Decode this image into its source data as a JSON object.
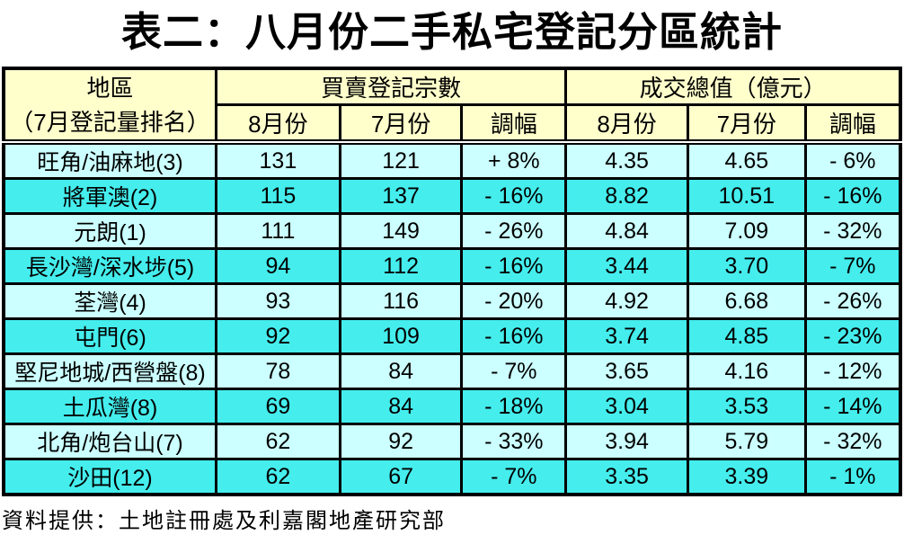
{
  "title": "表二：八月份二手私宅登記分區統計",
  "table": {
    "district_header_line1": "地區",
    "district_header_line2": "（7月登記量排名）",
    "group_headers": {
      "registrations": "買賣登記宗數",
      "total_value": "成交總值（億元）"
    },
    "sub_headers": [
      "8月份",
      "7月份",
      "調幅"
    ],
    "rows": [
      [
        "旺角/油麻地(3)",
        "131",
        "121",
        "+ 8%",
        "4.35",
        "4.65",
        "- 6%"
      ],
      [
        "將軍澳(2)",
        "115",
        "137",
        "- 16%",
        "8.82",
        "10.51",
        "- 16%"
      ],
      [
        "元朗(1)",
        "111",
        "149",
        "- 26%",
        "4.84",
        "7.09",
        "- 32%"
      ],
      [
        "長沙灣/深水埗(5)",
        "94",
        "112",
        "- 16%",
        "3.44",
        "3.70",
        "- 7%"
      ],
      [
        "荃灣(4)",
        "93",
        "116",
        "- 20%",
        "4.92",
        "6.68",
        "- 26%"
      ],
      [
        "屯門(6)",
        "92",
        "109",
        "- 16%",
        "3.74",
        "4.85",
        "- 23%"
      ],
      [
        "堅尼地城/西營盤(8)",
        "78",
        "84",
        "- 7%",
        "3.65",
        "4.16",
        "- 12%"
      ],
      [
        "土瓜灣(8)",
        "69",
        "84",
        "- 18%",
        "3.04",
        "3.53",
        "- 14%"
      ],
      [
        "北角/炮台山(7)",
        "62",
        "92",
        "- 33%",
        "3.94",
        "5.79",
        "- 32%"
      ],
      [
        "沙田(12)",
        "62",
        "67",
        "- 7%",
        "3.35",
        "3.39",
        "- 1%"
      ]
    ]
  },
  "footer": "資料提供：土地註冊處及利嘉閣地產研究部",
  "colors": {
    "header_bg": "#FFFFCC",
    "row_light": "#CCFFFF",
    "row_bright": "#45EDED",
    "border": "#000000",
    "text": "#000000"
  }
}
